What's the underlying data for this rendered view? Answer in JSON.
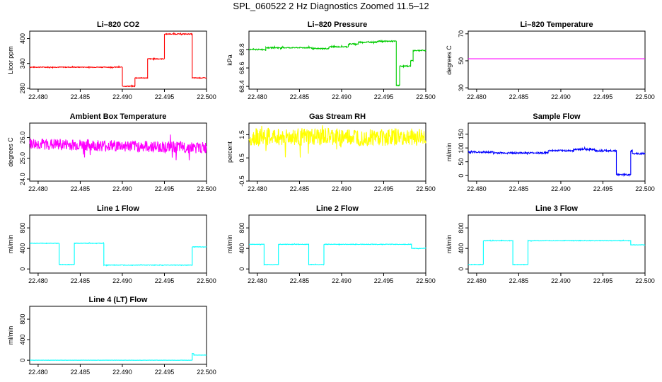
{
  "title": "SPL_060522  2 Hz Diagnostics Zoomed 11.5–12",
  "chart_data": [
    {
      "type": "line",
      "title": "Li–820 CO2",
      "ylabel": "Licor ppm",
      "color": "#ff0000",
      "xlim": [
        22.479,
        22.5
      ],
      "ylim": [
        278,
        418
      ],
      "xticks": [
        22.48,
        22.485,
        22.49,
        22.495,
        22.5
      ],
      "yticks": [
        280,
        340,
        400
      ],
      "yticklabels": [
        "280",
        "340",
        "400"
      ],
      "noise": 1,
      "series": [
        {
          "x": [
            22.479,
            22.49,
            22.49,
            22.4915,
            22.4915,
            22.493,
            22.493,
            22.495,
            22.495,
            22.4983,
            22.4983,
            22.5
          ],
          "y": [
            331,
            331,
            285,
            285,
            305,
            305,
            351,
            351,
            411,
            411,
            305,
            305
          ]
        }
      ]
    },
    {
      "type": "line",
      "title": "Li–820 Pressure",
      "ylabel": "kPa",
      "color": "#00cc00",
      "xlim": [
        22.479,
        22.5
      ],
      "ylim": [
        68.37,
        69.0
      ],
      "xticks": [
        22.48,
        22.485,
        22.49,
        22.495,
        22.5
      ],
      "yticks": [
        68.4,
        68.6,
        68.8
      ],
      "yticklabels": [
        "68.4",
        "68.6",
        "68.8"
      ],
      "noise": 0.006,
      "series": [
        {
          "x": [
            22.479,
            22.481,
            22.481,
            22.4865,
            22.4865,
            22.4885,
            22.4885,
            22.4908,
            22.4908,
            22.492,
            22.492,
            22.4942,
            22.4942,
            22.4965,
            22.4965,
            22.4969,
            22.4969,
            22.4982,
            22.4982,
            22.4985,
            22.4985,
            22.5
          ],
          "y": [
            68.8,
            68.8,
            68.82,
            68.82,
            68.81,
            68.81,
            68.83,
            68.83,
            68.86,
            68.86,
            68.88,
            68.88,
            68.89,
            68.89,
            68.41,
            68.41,
            68.62,
            68.62,
            68.68,
            68.68,
            68.79,
            68.79
          ]
        }
      ]
    },
    {
      "type": "line",
      "title": "Li–820 Temperature",
      "ylabel": "degrees C",
      "color": "#ff00ff",
      "xlim": [
        22.479,
        22.5
      ],
      "ylim": [
        29,
        72
      ],
      "xticks": [
        22.48,
        22.485,
        22.49,
        22.495,
        22.5
      ],
      "yticks": [
        30,
        50,
        70
      ],
      "yticklabels": [
        "30",
        "50",
        "70"
      ],
      "noise": 0,
      "series": [
        {
          "x": [
            22.479,
            22.5
          ],
          "y": [
            51.5,
            51.5
          ]
        }
      ]
    },
    {
      "type": "line",
      "title": "Ambient Box Temperature",
      "ylabel": "degrees C",
      "color": "#ff00ff",
      "xlim": [
        22.479,
        22.5
      ],
      "ylim": [
        23.9,
        26.7
      ],
      "xticks": [
        22.48,
        22.485,
        22.49,
        22.495,
        22.5
      ],
      "yticks": [
        24.0,
        25.0,
        26.0
      ],
      "yticklabels": [
        "24.0",
        "25.0",
        "26.0"
      ],
      "noise": 0.28,
      "series": [
        {
          "x": [
            22.479,
            22.5
          ],
          "y": [
            25.7,
            25.5
          ]
        }
      ]
    },
    {
      "type": "line",
      "title": "Gas Stream RH",
      "ylabel": "percent",
      "color": "#ffff00",
      "xlim": [
        22.479,
        22.5
      ],
      "ylim": [
        -0.5,
        2.0
      ],
      "xticks": [
        22.48,
        22.485,
        22.49,
        22.495,
        22.5
      ],
      "yticks": [
        -0.5,
        0.5,
        1.5
      ],
      "yticklabels": [
        "-0.5",
        "0.5",
        "1.5"
      ],
      "noise": 0.38,
      "series": [
        {
          "x": [
            22.479,
            22.5
          ],
          "y": [
            1.4,
            1.4
          ]
        }
      ]
    },
    {
      "type": "line",
      "title": "Sample Flow",
      "ylabel": "ml/min",
      "color": "#0000ff",
      "xlim": [
        22.479,
        22.5
      ],
      "ylim": [
        -20,
        190
      ],
      "xticks": [
        22.48,
        22.485,
        22.49,
        22.495,
        22.5
      ],
      "yticks": [
        0,
        50,
        100,
        150
      ],
      "yticklabels": [
        "0",
        "50",
        "100",
        "150"
      ],
      "noise": 3,
      "series": [
        {
          "x": [
            22.479,
            22.482,
            22.482,
            22.4885,
            22.4885,
            22.4915,
            22.4915,
            22.494,
            22.494,
            22.4966,
            22.4966,
            22.4983,
            22.4983,
            22.4985,
            22.4985,
            22.5
          ],
          "y": [
            85,
            85,
            82,
            82,
            90,
            90,
            95,
            95,
            90,
            90,
            3,
            3,
            90,
            90,
            80,
            80
          ]
        }
      ]
    },
    {
      "type": "line",
      "title": "Line 1 Flow",
      "ylabel": "ml/min",
      "color": "#00ffff",
      "xlim": [
        22.479,
        22.5
      ],
      "ylim": [
        -80,
        1050
      ],
      "xticks": [
        22.48,
        22.485,
        22.49,
        22.495,
        22.5
      ],
      "yticks": [
        0,
        400,
        800
      ],
      "yticklabels": [
        "0",
        "400",
        "800"
      ],
      "noise": 5,
      "series": [
        {
          "x": [
            22.479,
            22.4825,
            22.4825,
            22.4843,
            22.4843,
            22.4878,
            22.4878,
            22.4983,
            22.4983,
            22.5
          ],
          "y": [
            500,
            500,
            85,
            85,
            500,
            500,
            75,
            75,
            430,
            430
          ]
        }
      ]
    },
    {
      "type": "line",
      "title": "Line 2 Flow",
      "ylabel": "ml/min",
      "color": "#00ffff",
      "xlim": [
        22.479,
        22.5
      ],
      "ylim": [
        -80,
        1050
      ],
      "xticks": [
        22.48,
        22.485,
        22.49,
        22.495,
        22.5
      ],
      "yticks": [
        0,
        400,
        800
      ],
      "yticklabels": [
        "0",
        "400",
        "800"
      ],
      "noise": 5,
      "series": [
        {
          "x": [
            22.479,
            22.4808,
            22.4808,
            22.4825,
            22.4825,
            22.4861,
            22.4861,
            22.4879,
            22.4879,
            22.4983,
            22.4983,
            22.5
          ],
          "y": [
            480,
            480,
            85,
            85,
            480,
            480,
            85,
            85,
            480,
            480,
            400,
            400
          ]
        }
      ]
    },
    {
      "type": "line",
      "title": "Line 3 Flow",
      "ylabel": "ml/min",
      "color": "#00ffff",
      "xlim": [
        22.479,
        22.5
      ],
      "ylim": [
        -80,
        1050
      ],
      "xticks": [
        22.48,
        22.485,
        22.49,
        22.495,
        22.5
      ],
      "yticks": [
        0,
        400,
        800
      ],
      "yticklabels": [
        "0",
        "400",
        "800"
      ],
      "noise": 5,
      "series": [
        {
          "x": [
            22.479,
            22.4808,
            22.4808,
            22.4843,
            22.4843,
            22.4861,
            22.4861,
            22.4983,
            22.4983,
            22.5
          ],
          "y": [
            85,
            85,
            550,
            550,
            85,
            85,
            550,
            550,
            470,
            470
          ]
        }
      ]
    },
    {
      "type": "line",
      "title": "Line 4 (LT) Flow",
      "ylabel": "ml/min",
      "color": "#00ffff",
      "xlim": [
        22.479,
        22.5
      ],
      "ylim": [
        -80,
        1050
      ],
      "xticks": [
        22.48,
        22.485,
        22.49,
        22.495,
        22.5
      ],
      "yticks": [
        0,
        400,
        800
      ],
      "yticklabels": [
        "0",
        "400",
        "800"
      ],
      "noise": 2,
      "series": [
        {
          "x": [
            22.479,
            22.4983,
            22.4983,
            22.4985,
            22.4985,
            22.5
          ],
          "y": [
            0,
            0,
            130,
            130,
            100,
            100
          ]
        }
      ]
    }
  ]
}
